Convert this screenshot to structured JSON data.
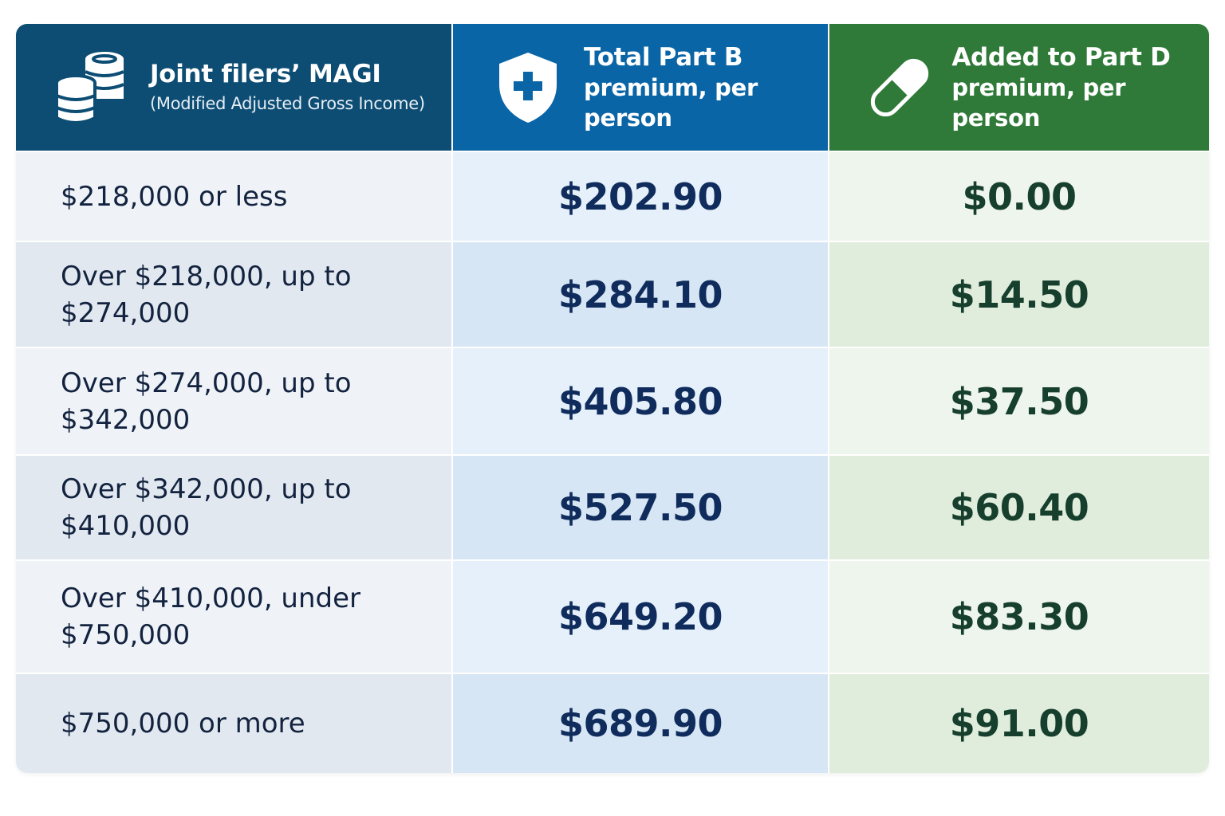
{
  "header": {
    "col1_title": "Joint filers’ MAGI",
    "col1_subtitle": "(Modified Adjusted Gross Income)",
    "col2_title": "Total Part B",
    "col2_subtitle": "premium, per person",
    "col3_title": "Added to Part D",
    "col3_subtitle": "premium, per person"
  },
  "icons": {
    "col1": "coins-stack-icon",
    "col2": "shield-cross-icon",
    "col3": "pill-capsule-icon"
  },
  "colors": {
    "col1_header": "#0d4d74",
    "col2_header": "#0a65a6",
    "col3_header": "#2f7a38"
  },
  "rows": [
    {
      "income": "$218,000 or less",
      "part_b": "$202.90",
      "part_d": "$0.00"
    },
    {
      "income": "Over $218,000, up to $274,000",
      "part_b": "$284.10",
      "part_d": "$14.50"
    },
    {
      "income": "Over $274,000, up to $342,000",
      "part_b": "$405.80",
      "part_d": "$37.50"
    },
    {
      "income": "Over $342,000, up to $410,000",
      "part_b": "$527.50",
      "part_d": "$60.40"
    },
    {
      "income": "Over $410,000, under $750,000",
      "part_b": "$649.20",
      "part_d": "$83.30"
    },
    {
      "income": "$750,000 or more",
      "part_b": "$689.90",
      "part_d": "$91.00"
    }
  ]
}
